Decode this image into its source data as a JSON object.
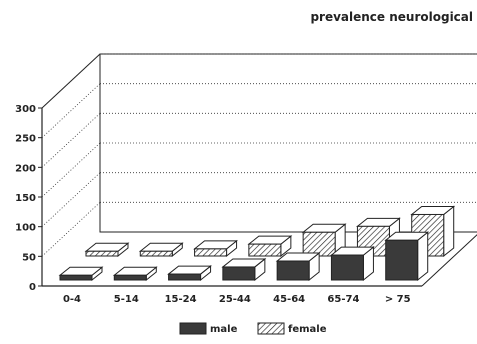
{
  "chart_data": {
    "type": "bar",
    "style": "3d-grouped-depth",
    "title": "prevalence neurological",
    "categories": [
      "0-4",
      "5-14",
      "15-24",
      "25-44",
      "45-64",
      "65-74",
      "> 75"
    ],
    "series": [
      {
        "name": "male",
        "values": [
          8,
          8,
          10,
          22,
          32,
          42,
          67
        ],
        "color": "#3a3a3a",
        "pattern": "solid"
      },
      {
        "name": "female",
        "values": [
          8,
          8,
          12,
          20,
          40,
          50,
          70
        ],
        "color": "#ffffff",
        "pattern": "diagonal-hatch"
      }
    ],
    "ylim": [
      0,
      300
    ],
    "yticks": [
      0,
      50,
      100,
      150,
      200,
      250,
      300
    ],
    "grid": true,
    "legend": "bottom"
  }
}
